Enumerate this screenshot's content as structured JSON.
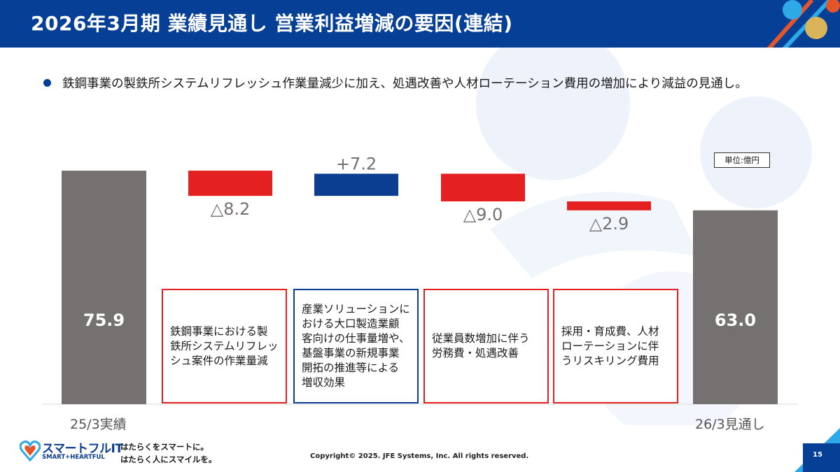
{
  "header": {
    "title": "2026年3月期 業績見通し 営業利益増減の要因(連結)"
  },
  "bullet": {
    "text": "鉄鋼事業の製鉄所システムリフレッシュ作業量減少に加え、処遇改善や人材ローテーション費用の増加により減益の見通し。"
  },
  "unit_label": "単位:億円",
  "chart_data": {
    "type": "waterfall",
    "categories": [
      "25/3実績",
      "",
      "",
      "",
      "",
      "26/3見通し"
    ],
    "steps": [
      {
        "kind": "total",
        "value": 75.9,
        "label": "75.9",
        "color": "#767171"
      },
      {
        "kind": "delta",
        "value": -8.2,
        "label": "△8.2",
        "color": "#e52020"
      },
      {
        "kind": "delta",
        "value": 7.2,
        "label": "+7.2",
        "color": "#0b3d91"
      },
      {
        "kind": "delta",
        "value": -9.0,
        "label": "△9.0",
        "color": "#e52020"
      },
      {
        "kind": "delta",
        "value": -2.9,
        "label": "△2.9",
        "color": "#e52020"
      },
      {
        "kind": "total",
        "value": 63.0,
        "label": "63.0",
        "color": "#767171"
      }
    ]
  },
  "notes": [
    {
      "text": "鉄鋼事業における製\n鉄所システムリフレッ\nシュ案件の作業量減",
      "color": "red"
    },
    {
      "text": "産業ソリューションに\nおける大口製造業顧\n客向けの仕事量増や、\n基盤事業の新規事業\n開拓の推進等による\n増収効果",
      "color": "blue"
    },
    {
      "text": "従業員数増加に伴う\n労務費・処遇改善",
      "color": "red"
    },
    {
      "text": "採用・育成費、人材\nローテーションに伴\nうリスキリング費用",
      "color": "red"
    }
  ],
  "footer": {
    "logo_text": "スマートフルIT",
    "logo_sub": "SMART+HEARTFUL",
    "tagline": "はたらくをスマートに。\nはたらく人にスマイルを。",
    "copyright": "Copyright© 2025. JFE Systems, Inc. All rights reserved.",
    "page_number": "15"
  },
  "colors": {
    "brand_blue": "#053f96",
    "decrease_red": "#e52020",
    "increase_blue": "#0b3d91",
    "total_gray": "#767171"
  }
}
